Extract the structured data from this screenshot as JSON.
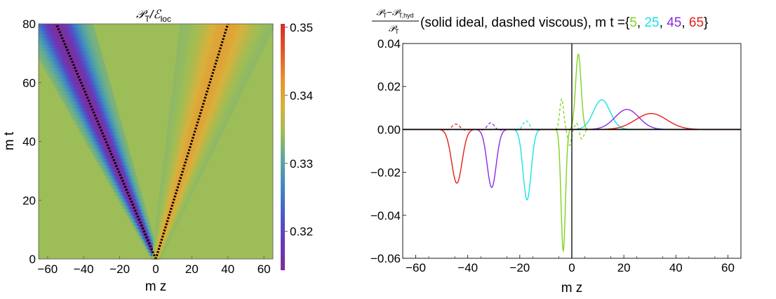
{
  "chart_data": [
    {
      "type": "heatmap",
      "title": "𝒫T/ℰloc",
      "title_parts": {
        "main": "𝒫",
        "main_sub": "T",
        "sep": "/ℰ",
        "sep_sub": "loc"
      },
      "xlabel": "m z",
      "ylabel": "m t",
      "xlim": [
        -65,
        65
      ],
      "ylim": [
        0,
        80
      ],
      "xticks": [
        "−60",
        "−40",
        "−20",
        "0",
        "20",
        "40",
        "60"
      ],
      "xtick_values": [
        -60,
        -40,
        -20,
        0,
        20,
        40,
        60
      ],
      "yticks": [
        "0",
        "20",
        "40",
        "60",
        "80"
      ],
      "ytick_values": [
        0,
        20,
        40,
        60,
        80
      ],
      "colorbar": {
        "range": [
          0.3143,
          0.3505
        ],
        "ticks": [
          "0.32",
          "0.33",
          "0.34",
          "0.35"
        ],
        "tick_values": [
          0.32,
          0.33,
          0.34,
          0.35
        ],
        "colors": [
          "#7d2e9a",
          "#6a38b8",
          "#4a5bc8",
          "#3f86c4",
          "#58a79f",
          "#9cbd57",
          "#d8b23c",
          "#e8902e",
          "#e5572a",
          "#d42e2a"
        ]
      },
      "background_value": 0.3333,
      "background_color": "#9cbd57",
      "left_band": {
        "front_slope": -0.69,
        "min_value": 0.3143,
        "sigma": 2.2,
        "line_style": "dotted"
      },
      "right_band": {
        "front_slope": 0.5,
        "max_value": 0.3405,
        "sigma": 5.5,
        "line_style": "dotted"
      }
    },
    {
      "type": "line",
      "title": "(𝒫T−𝒫T,hyd)/𝒫T (solid ideal, dashed viscous), m t ={5, 25, 45, 65}",
      "title_parts": {
        "num_main": "𝒫",
        "num_sub": "T",
        "num_op": "−𝒫",
        "num_sub2": "T,hyd",
        "den_main": "𝒫",
        "den_sub": "T",
        "text": "(solid ideal, dashed viscous), m t ={",
        "sep": ", ",
        "close": "}"
      },
      "xlabel": "m z",
      "ylabel": "",
      "xlim": [
        -65,
        65
      ],
      "ylim": [
        -0.06,
        0.04
      ],
      "xticks": [
        "−60",
        "−40",
        "−20",
        "0",
        "20",
        "40",
        "60"
      ],
      "xtick_values": [
        -60,
        -40,
        -20,
        0,
        20,
        40,
        60
      ],
      "yticks": [
        "−0.06",
        "−0.04",
        "−0.02",
        "0.00",
        "0.02",
        "0.04"
      ],
      "ytick_values": [
        -0.06,
        -0.04,
        -0.02,
        0.0,
        0.02,
        0.04
      ],
      "series": [
        {
          "name": "5",
          "color": "#7ed321",
          "ideal": {
            "neg_center": -3.3,
            "neg_amp": -0.0565,
            "neg_sigma": 0.85,
            "pos_center": 2.5,
            "pos_amp": 0.035,
            "pos_sigma": 1.05
          },
          "viscous": {
            "pos_center": -3.9,
            "pos_amp": 0.0142,
            "pos_sigma": 0.75,
            "neg_center": -0.9,
            "neg_amp": -0.0075,
            "neg_sigma": 0.7,
            "pos2_center": 1.9,
            "pos2_amp": 0.0032,
            "pos2_sigma": 0.7,
            "neg2_center": 3.8,
            "neg2_amp": -0.0045,
            "neg2_sigma": 0.85
          }
        },
        {
          "name": "25",
          "color": "#18e2e6",
          "ideal": {
            "neg_center": -17.2,
            "neg_amp": -0.0328,
            "neg_sigma": 1.55,
            "pos_center": 11.5,
            "pos_amp": 0.0138,
            "pos_sigma": 3.2
          },
          "viscous": {
            "pos_center": -17.6,
            "pos_amp": 0.0042,
            "pos_sigma": 1.4,
            "neg_center": -19.8,
            "neg_amp": -0.0008,
            "neg_sigma": 1.2,
            "pos2_center": -15.0,
            "pos2_amp": -0.0008,
            "pos2_sigma": 1.2,
            "neg2_center": 0,
            "neg2_amp": 0,
            "neg2_sigma": 1
          }
        },
        {
          "name": "45",
          "color": "#8a2be2",
          "ideal": {
            "neg_center": -30.8,
            "neg_amp": -0.027,
            "neg_sigma": 1.75,
            "pos_center": 21.2,
            "pos_amp": 0.0093,
            "pos_sigma": 4.6
          },
          "viscous": {
            "pos_center": -31.2,
            "pos_amp": 0.0032,
            "pos_sigma": 1.5,
            "neg_center": -33.6,
            "neg_amp": -0.0007,
            "neg_sigma": 1.2,
            "pos2_center": -28.5,
            "pos2_amp": -0.0007,
            "pos2_sigma": 1.2,
            "neg2_center": 0,
            "neg2_amp": 0,
            "neg2_sigma": 1
          }
        },
        {
          "name": "65",
          "color": "#e0201b",
          "ideal": {
            "neg_center": -44.2,
            "neg_amp": -0.025,
            "neg_sigma": 2.0,
            "pos_center": 30.5,
            "pos_amp": 0.0074,
            "pos_sigma": 6.0
          },
          "viscous": {
            "pos_center": -44.6,
            "pos_amp": 0.0026,
            "pos_sigma": 1.7,
            "neg_center": -47.3,
            "neg_amp": -0.0007,
            "neg_sigma": 1.3,
            "pos2_center": -41.6,
            "pos2_amp": -0.0007,
            "pos2_sigma": 1.3,
            "neg2_center": 0,
            "neg2_amp": 0,
            "neg2_sigma": 1
          }
        }
      ]
    }
  ]
}
